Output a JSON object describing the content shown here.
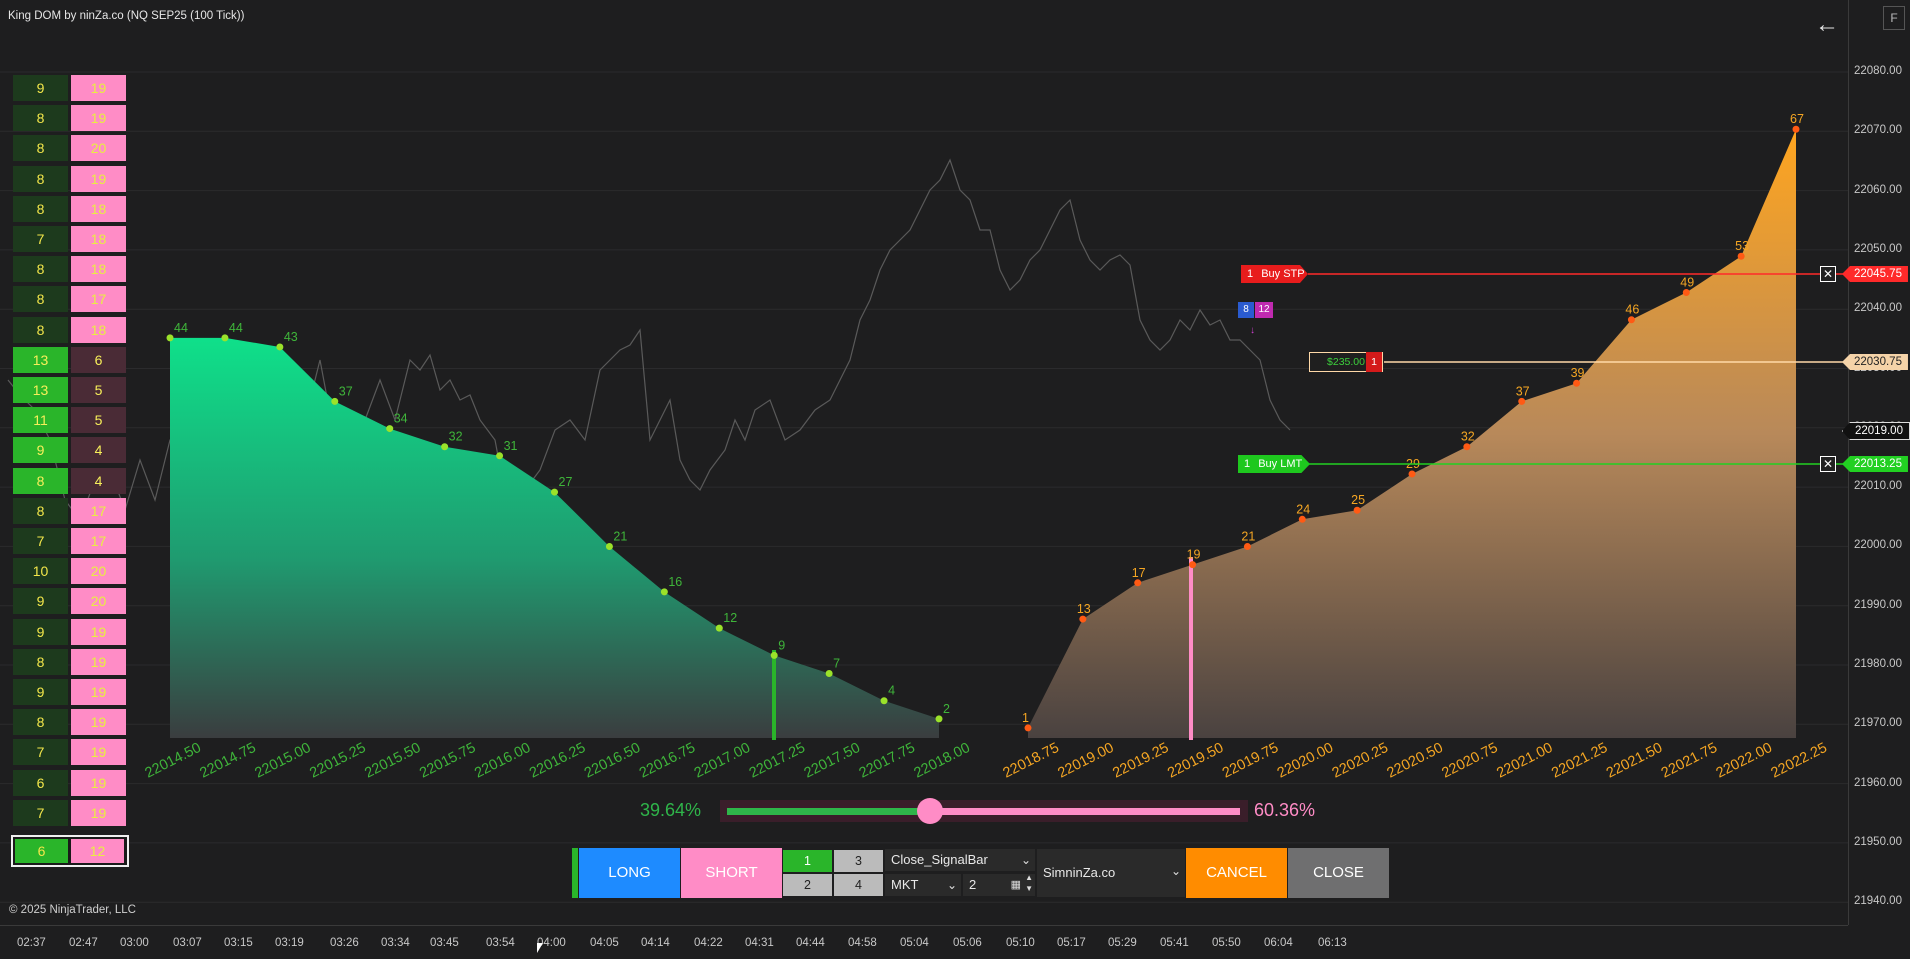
{
  "window": {
    "title": "King DOM by ninZa.co (NQ SEP25 (100 Tick))",
    "back_icon": "arrow-left-icon",
    "f_label": "F",
    "copyright": "© 2025 NinjaTrader, LLC"
  },
  "price_axis": {
    "ticks": [
      "22080.00",
      "22070.00",
      "22060.00",
      "22050.00",
      "22040.00",
      "22030.00",
      "22020.00",
      "22010.00",
      "22000.00",
      "21990.00",
      "21980.00",
      "21970.00",
      "21960.00",
      "21950.00",
      "21940.00"
    ],
    "tags": {
      "stop": "22045.75",
      "position": "22030.75",
      "last": "22019.00",
      "limit": "22013.25"
    }
  },
  "time_axis": [
    "02:37",
    "02:47",
    "03:00",
    "03:07",
    "03:15",
    "03:19",
    "03:26",
    "03:34",
    "03:45",
    "03:54",
    "04:00",
    "04:05",
    "04:14",
    "04:22",
    "04:31",
    "04:44",
    "04:58",
    "05:04",
    "05:06",
    "05:10",
    "05:17",
    "05:29",
    "05:41",
    "05:50",
    "06:04",
    "06:13"
  ],
  "dom_ladder": [
    {
      "bid": "9",
      "ask": "19"
    },
    {
      "bid": "8",
      "ask": "19"
    },
    {
      "bid": "8",
      "ask": "20"
    },
    {
      "bid": "8",
      "ask": "19"
    },
    {
      "bid": "8",
      "ask": "18"
    },
    {
      "bid": "7",
      "ask": "18"
    },
    {
      "bid": "8",
      "ask": "18"
    },
    {
      "bid": "8",
      "ask": "17"
    },
    {
      "bid": "8",
      "ask": "18"
    },
    {
      "bid": "13",
      "ask": "6",
      "hi": true
    },
    {
      "bid": "13",
      "ask": "5",
      "hi": true
    },
    {
      "bid": "11",
      "ask": "5",
      "hi": true
    },
    {
      "bid": "9",
      "ask": "4",
      "hi": true
    },
    {
      "bid": "8",
      "ask": "4",
      "hi": true
    },
    {
      "bid": "8",
      "ask": "17"
    },
    {
      "bid": "7",
      "ask": "17"
    },
    {
      "bid": "10",
      "ask": "20"
    },
    {
      "bid": "9",
      "ask": "20"
    },
    {
      "bid": "9",
      "ask": "19"
    },
    {
      "bid": "8",
      "ask": "19"
    },
    {
      "bid": "9",
      "ask": "19"
    },
    {
      "bid": "8",
      "ask": "19"
    },
    {
      "bid": "7",
      "ask": "19"
    },
    {
      "bid": "6",
      "ask": "19"
    },
    {
      "bid": "7",
      "ask": "19"
    }
  ],
  "dom_total": {
    "bid": "6",
    "ask": "12"
  },
  "orders": {
    "stop": {
      "qty": "1",
      "label": "Buy STP"
    },
    "limit": {
      "qty": "1",
      "label": "Buy LMT"
    },
    "position": {
      "pnl": "$235.00",
      "qty": "1"
    },
    "flag_a": "8",
    "flag_b": "12"
  },
  "balance": {
    "left_pct": "39.64%",
    "right_pct": "60.36%",
    "left_fraction": 0.3964
  },
  "order_panel": {
    "long": "LONG",
    "short": "SHORT",
    "qty_buttons": [
      "1",
      "3",
      "2",
      "4"
    ],
    "strategy": "Close_SignalBar",
    "order_type": "MKT",
    "quantity": "2",
    "account": "SimninZa.co",
    "cancel": "CANCEL",
    "close": "CLOSE"
  },
  "colors": {
    "bid_green": "#2ab52a",
    "ask_pink": "#ff8cc6",
    "stop_red": "#ff2a2a",
    "limit_green": "#22d022",
    "ask_orange": "#f5a623",
    "cancel_orange": "#ff8c00"
  },
  "chart_data": {
    "type": "area",
    "bid_side": {
      "x": [
        "22014.50",
        "22014.75",
        "22015.00",
        "22015.25",
        "22015.50",
        "22015.75",
        "22016.00",
        "22016.25",
        "22016.50",
        "22016.75",
        "22017.00",
        "22017.25",
        "22017.50",
        "22017.75",
        "22018.00"
      ],
      "values": [
        44,
        44,
        43,
        37,
        34,
        32,
        31,
        27,
        21,
        16,
        12,
        9,
        7,
        4,
        2
      ]
    },
    "ask_side": {
      "x": [
        "22018.75",
        "22019.00",
        "22019.25",
        "22019.50",
        "22019.75",
        "22020.00",
        "22020.25",
        "22020.50",
        "22020.75",
        "22021.00",
        "22021.25",
        "22021.50",
        "22021.75",
        "22022.00",
        "22022.25"
      ],
      "values": [
        1,
        13,
        17,
        19,
        21,
        24,
        25,
        29,
        32,
        37,
        39,
        46,
        49,
        53,
        67
      ]
    },
    "ylim": [
      0,
      70
    ],
    "price_ylim": [
      21935,
      22086
    ]
  }
}
